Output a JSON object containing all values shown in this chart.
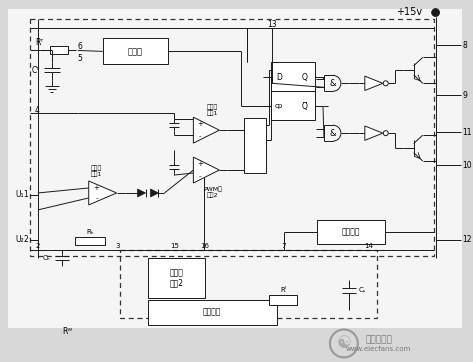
{
  "bg_color": "#d8d8d8",
  "line_color": "#1a1a1a",
  "box_fill": "#ffffff",
  "fig_w": 4.73,
  "fig_h": 3.62,
  "dpi": 100,
  "labels": {
    "vibrator": "振蕩器",
    "deadzone": "死區比\n較器1",
    "error_amp1": "誤差放\n大器1",
    "pwm": "PWM比\n較器2",
    "error_amp2": "誤差放\n大器2",
    "current_det": "電流檢測",
    "ref_power": "基準電源",
    "plus15v": "+15v",
    "and1": "&",
    "and2": "&",
    "watermark1": "電子發燒友",
    "watermark2": "www.elecfans.com"
  }
}
